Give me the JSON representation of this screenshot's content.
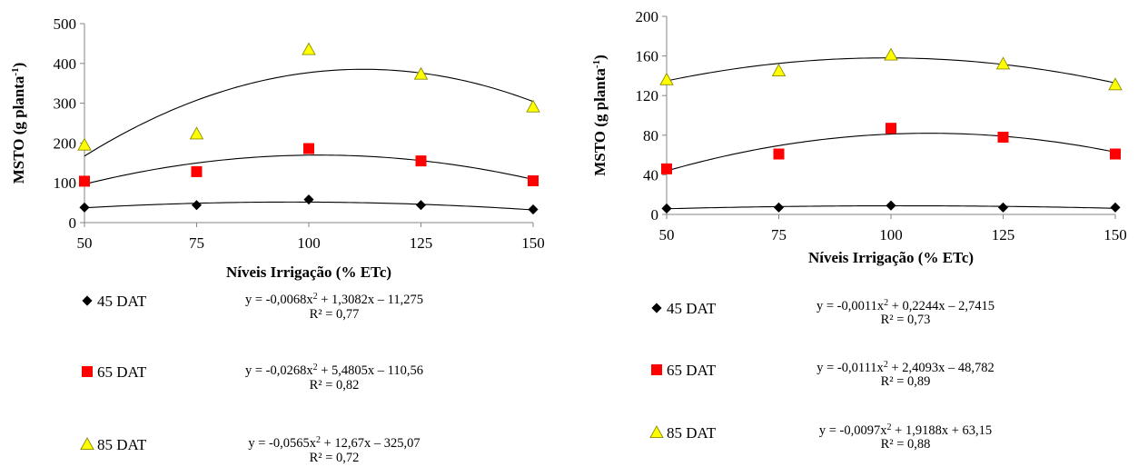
{
  "chart_data": [
    {
      "type": "scatter",
      "xlabel": "Níveis Irrigação (% ETc)",
      "ylabel": "MSTO (g planta-1)",
      "ylabel_main": "MSTO (g planta",
      "ylabel_sup": "-1",
      "ylabel_close": ")",
      "x": [
        50,
        75,
        100,
        125,
        150
      ],
      "xlim": [
        50,
        150
      ],
      "ylim": [
        0,
        500
      ],
      "xticks": [
        "50",
        "75",
        "100",
        "125",
        "150"
      ],
      "yticks": [
        "0",
        "100",
        "200",
        "300",
        "400",
        "500"
      ],
      "grid": false,
      "legend_position": "bottom",
      "series": [
        {
          "name": "45 DAT",
          "marker": "diamond",
          "color": "#000000",
          "values": [
            38,
            44,
            58,
            44,
            33
          ],
          "fit": {
            "a": -0.0068,
            "b": 1.3082,
            "c": -11.275
          },
          "equation_main": "y = -0,0068x",
          "equation_rest": " + 1,3082x – 11,275",
          "r2": "R² = 0,77"
        },
        {
          "name": "65 DAT",
          "marker": "square",
          "color": "#ff0000",
          "values": [
            104,
            128,
            186,
            155,
            105
          ],
          "fit": {
            "a": -0.0268,
            "b": 5.4805,
            "c": -110.56
          },
          "equation_main": "y = -0,0268x",
          "equation_rest": " + 5,4805x – 110,56",
          "r2": "R² = 0,82"
        },
        {
          "name": "85 DAT",
          "marker": "triangle",
          "color": "#ffff00",
          "values": [
            195,
            223,
            435,
            373,
            291
          ],
          "fit": {
            "a": -0.0565,
            "b": 12.67,
            "c": -325.07
          },
          "equation_main": "y = -0,0565x",
          "equation_rest": " + 12,67x – 325,07",
          "r2": "R² = 0,72"
        }
      ]
    },
    {
      "type": "scatter",
      "xlabel": "Níveis Irrigação (% ETc)",
      "ylabel": "MSTO (g planta-1)",
      "ylabel_main": "MSTO (g planta",
      "ylabel_sup": "-1",
      "ylabel_close": ")",
      "x": [
        50,
        75,
        100,
        125,
        150
      ],
      "xlim": [
        50,
        150
      ],
      "ylim": [
        0,
        200
      ],
      "xticks": [
        "50",
        "75",
        "100",
        "125",
        "150"
      ],
      "yticks": [
        "0",
        "40",
        "80",
        "120",
        "160",
        "200"
      ],
      "grid": false,
      "legend_position": "bottom",
      "series": [
        {
          "name": "45 DAT",
          "marker": "diamond",
          "color": "#000000",
          "values": [
            6,
            7,
            9,
            7,
            7
          ],
          "fit": {
            "a": -0.0011,
            "b": 0.2244,
            "c": -2.7415
          },
          "equation_main": "y = -0,0011x",
          "equation_rest": " + 0,2244x – 2,7415",
          "r2": "R² = 0,73"
        },
        {
          "name": "65 DAT",
          "marker": "square",
          "color": "#ff0000",
          "values": [
            46,
            61,
            87,
            78,
            61
          ],
          "fit": {
            "a": -0.0111,
            "b": 2.4093,
            "c": -48.782
          },
          "equation_main": "y = -0,0111x",
          "equation_rest": " + 2,4093x – 48,782",
          "r2": "R² = 0,89"
        },
        {
          "name": "85 DAT",
          "marker": "triangle",
          "color": "#ffff00",
          "values": [
            136,
            145,
            161,
            152,
            131
          ],
          "fit": {
            "a": -0.0097,
            "b": 1.9188,
            "c": 63.15
          },
          "equation_main": "y = -0,0097x",
          "equation_rest": " + 1,9188x + 63,15",
          "r2": "R² = 0,88"
        }
      ]
    }
  ]
}
